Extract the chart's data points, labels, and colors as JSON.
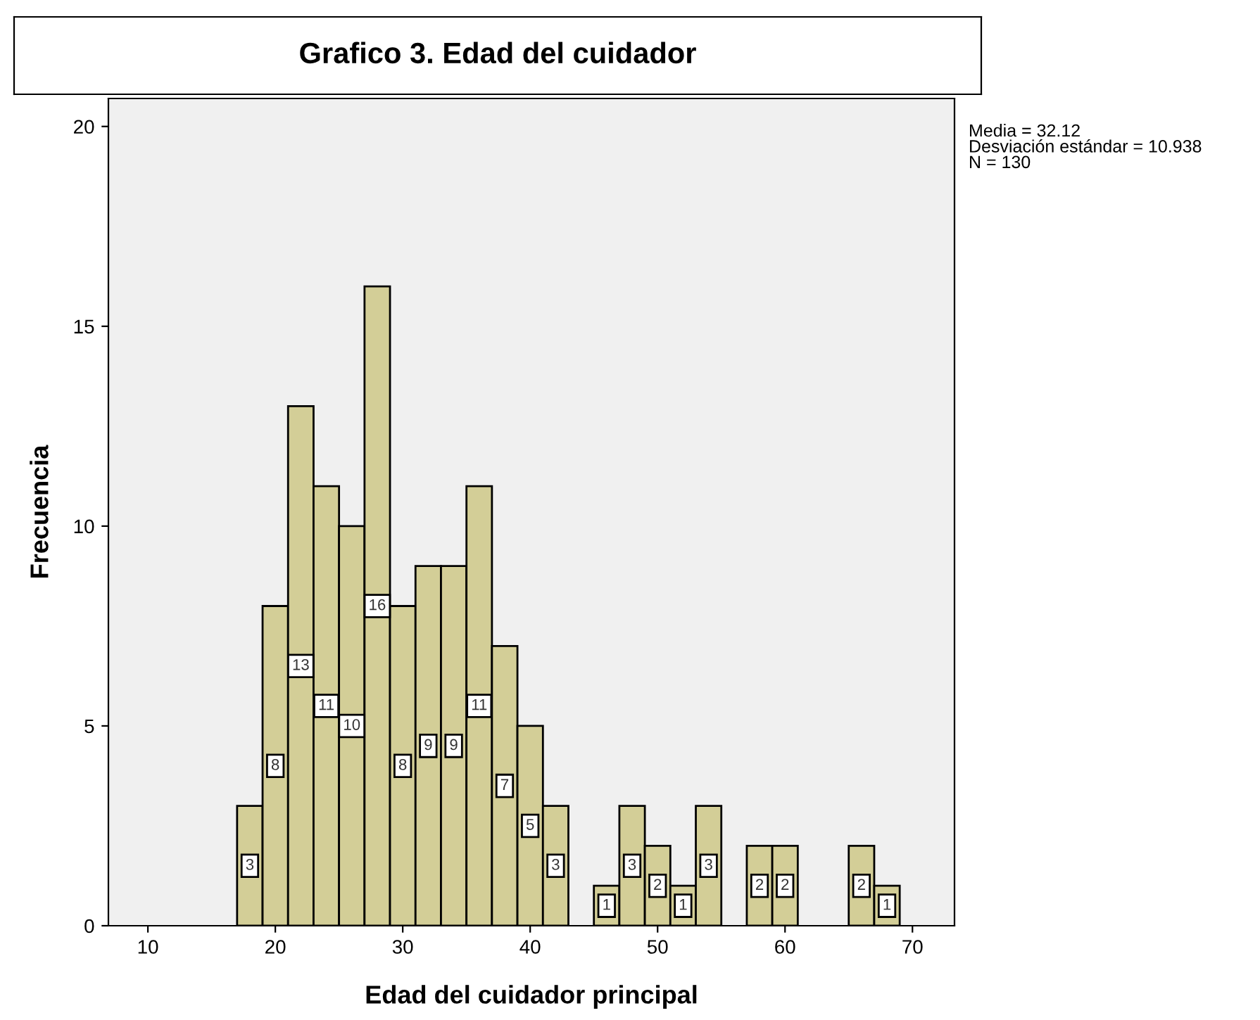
{
  "chart_data": {
    "type": "histogram",
    "title": "Grafico 3. Edad del cuidador",
    "xlabel": "Edad del cuidador principal",
    "ylabel": "Frecuencia",
    "bins": [
      17,
      19,
      21,
      23,
      25,
      27,
      29,
      31,
      33,
      35,
      37,
      39,
      41,
      43,
      45,
      47,
      49,
      51,
      53,
      55,
      57,
      59,
      61,
      63,
      65,
      67,
      69
    ],
    "values": [
      3,
      8,
      13,
      11,
      10,
      16,
      8,
      9,
      9,
      11,
      7,
      5,
      3,
      0,
      1,
      3,
      2,
      1,
      3,
      0,
      2,
      2,
      0,
      0,
      2,
      1
    ],
    "value_labels": [
      "3",
      "8",
      "13",
      "11",
      "10",
      "16",
      "8",
      "9",
      "9",
      "11",
      "7",
      "5",
      "3",
      null,
      "1",
      "3",
      "2",
      "1",
      "3",
      null,
      "2",
      "2",
      null,
      null,
      "2",
      "1"
    ],
    "color": "#d3ce97",
    "xlim": [
      6.9,
      73.3
    ],
    "ylim": [
      0,
      20.7
    ],
    "xticks": [
      10,
      20,
      30,
      40,
      50,
      60,
      70
    ],
    "yticks": [
      0,
      5,
      10,
      15,
      20
    ],
    "grid": false,
    "annotations": [
      "Media = 32.12\nDesviación estándar = 10.938\nN = 130"
    ]
  }
}
